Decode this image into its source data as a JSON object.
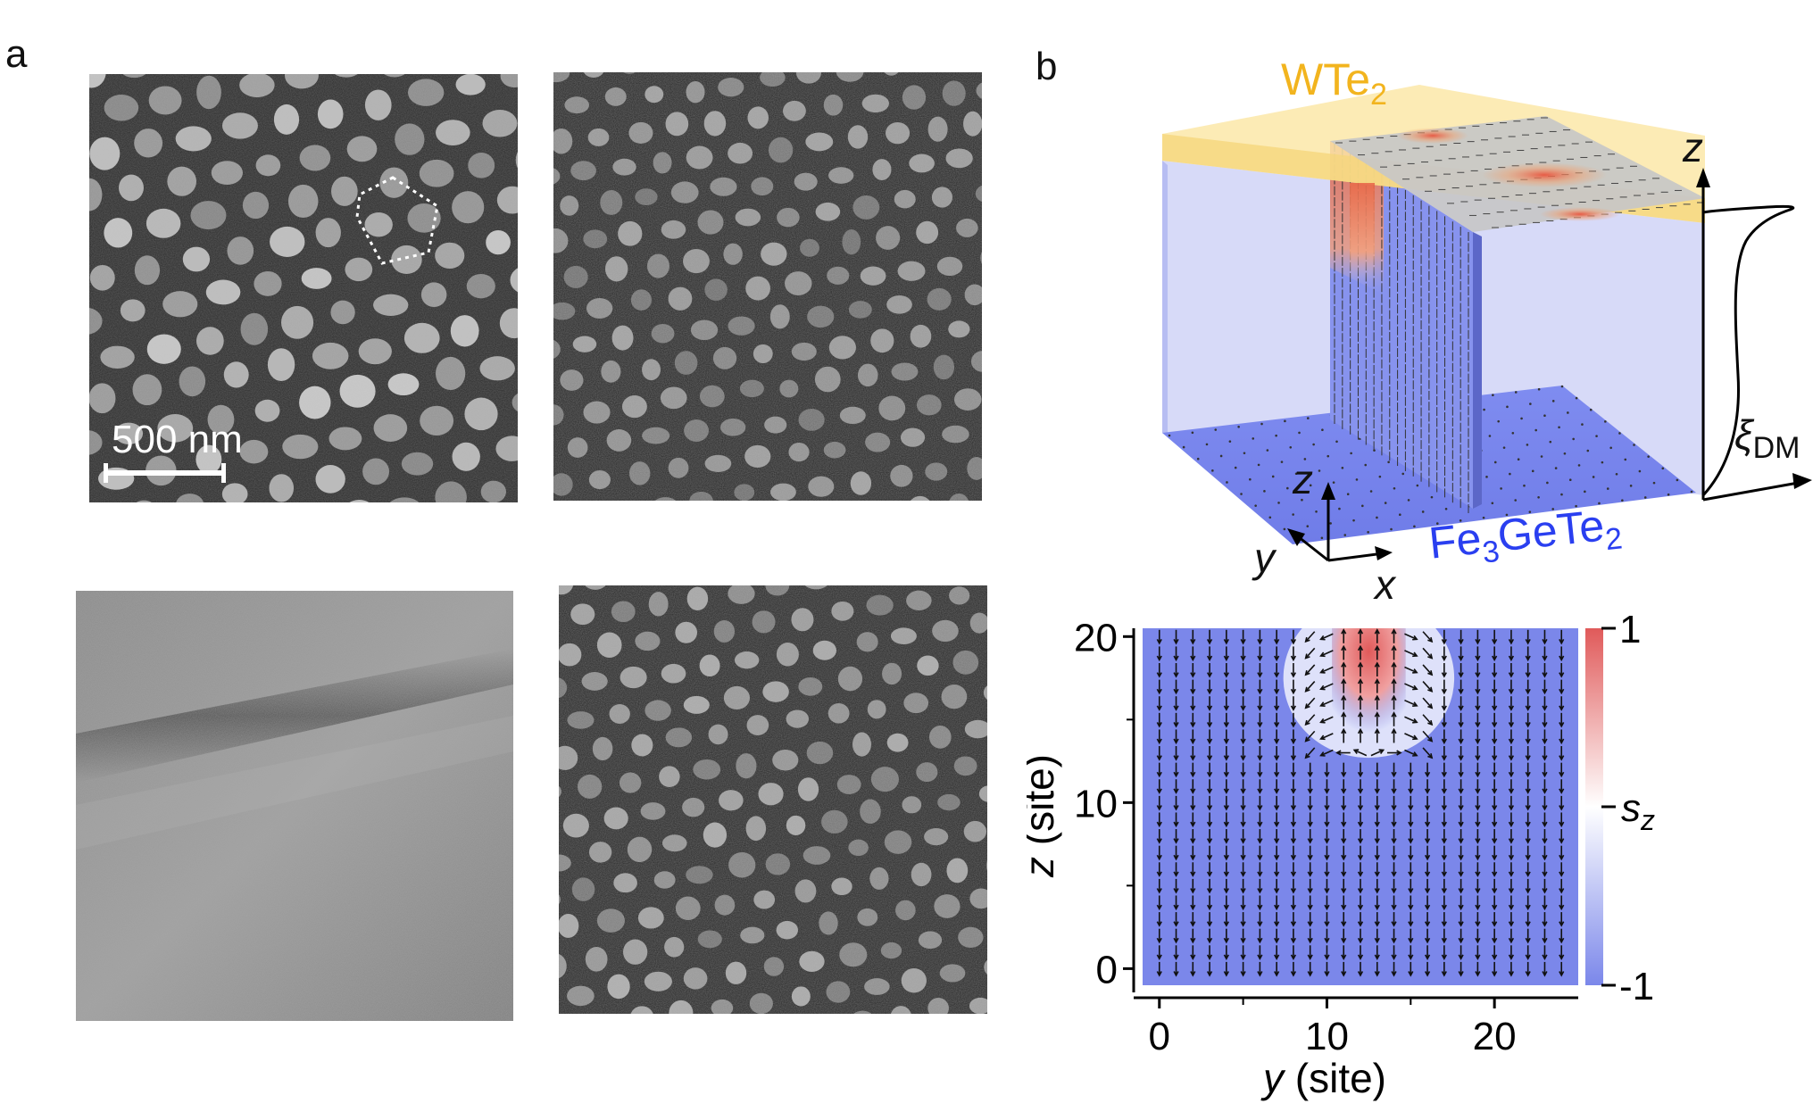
{
  "panel_a": {
    "letter": "a",
    "scale_bar_label": "500 nm"
  },
  "panel_b": {
    "letter": "b",
    "top_material": "WTe",
    "top_material_sub": "2",
    "bottom_material_a": "Fe",
    "bottom_material_sub1": "3",
    "bottom_material_b": "GeTe",
    "bottom_material_sub2": "2",
    "axis_x": "x",
    "axis_y": "y",
    "axis_z": "z",
    "profile_axis": "z",
    "profile_label": "ξ",
    "profile_label_sub": "DM"
  },
  "chart_data": {
    "type": "heatmap",
    "title": "",
    "xlabel_var": "y",
    "xlabel_unit": "(site)",
    "ylabel_var": "z",
    "ylabel_unit": "(site)",
    "x_range": [
      -1,
      25
    ],
    "y_range": [
      -1,
      20.5
    ],
    "x_ticks": [
      0,
      10,
      20
    ],
    "y_ticks": [
      0,
      10,
      20
    ],
    "colorbar": {
      "label": "s",
      "label_sub": "z",
      "max_label": "1",
      "min_label": "-1",
      "range": [
        -1,
        1
      ],
      "colors": {
        "max": "#e05a5a",
        "mid": "#ffffff",
        "min": "#7b87ea"
      }
    },
    "field": {
      "grid_x": [
        0,
        24
      ],
      "grid_z": [
        0,
        20
      ],
      "background_sz": -1,
      "upward_column_center_y": 12.5,
      "upward_column_half_width": 1.5,
      "upward_column_z_range": [
        14,
        20
      ]
    }
  },
  "colors": {
    "wte2_label": "#f2b41e",
    "wte2_slab": "#fbe7a8",
    "fgt_label": "#2a3ff0",
    "fgt_volume": "#c8cdf6",
    "fgt_floor": "#7d8bf0"
  }
}
